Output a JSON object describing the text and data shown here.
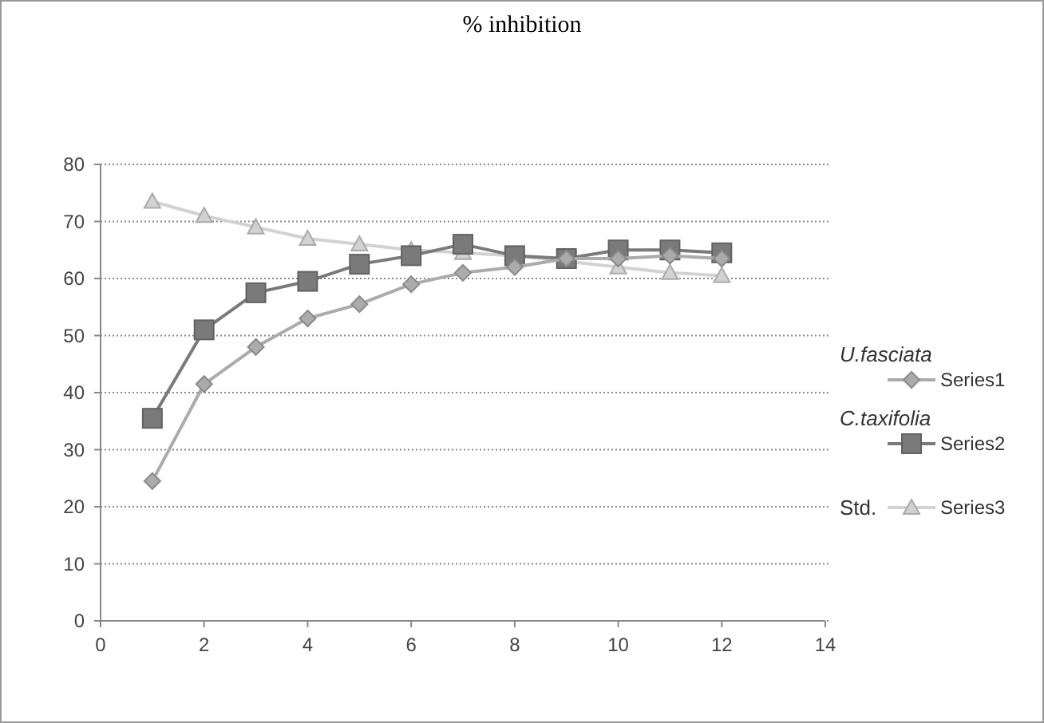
{
  "chart_data": {
    "type": "line",
    "title": "% inhibition",
    "x": [
      1,
      2,
      3,
      4,
      5,
      6,
      7,
      8,
      9,
      10,
      11,
      12
    ],
    "series": [
      {
        "name": "Series1",
        "color": "#ababab",
        "marker": "diamond",
        "values": [
          24.5,
          41.5,
          48,
          53,
          55.5,
          59,
          61,
          62,
          63.5,
          63.5,
          64,
          63.5
        ]
      },
      {
        "name": "Series2",
        "color": "#7a7a7a",
        "marker": "square",
        "values": [
          35.5,
          51,
          57.5,
          59.5,
          62.5,
          64,
          66,
          64,
          63.5,
          65,
          65,
          64.5
        ]
      },
      {
        "name": "Series3",
        "color": "#d2d2d2",
        "marker": "triangle",
        "values": [
          73.5,
          71,
          69,
          67,
          66,
          65,
          64.5,
          64,
          63,
          62,
          61,
          60.5
        ]
      }
    ],
    "xlim": [
      0,
      14
    ],
    "xticks": [
      0,
      2,
      4,
      6,
      8,
      10,
      12,
      14
    ],
    "ylim": [
      0,
      80
    ],
    "yticks": [
      0,
      10,
      20,
      30,
      40,
      50,
      60,
      70,
      80
    ],
    "grid": "y",
    "legend": "right",
    "line_style": "solid",
    "annotations": [
      "U.fasciata",
      "C.taxifolia",
      "Std."
    ]
  }
}
